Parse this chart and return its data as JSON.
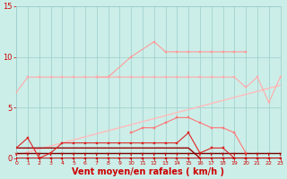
{
  "x": [
    0,
    1,
    2,
    3,
    4,
    5,
    6,
    7,
    8,
    9,
    10,
    11,
    12,
    13,
    14,
    15,
    16,
    17,
    18,
    19,
    20,
    21,
    22,
    23
  ],
  "series": [
    {
      "name": "rafales_top",
      "color": "#ff9999",
      "linewidth": 0.8,
      "marker": "s",
      "markersize": 2.0,
      "values": [
        null,
        null,
        null,
        null,
        null,
        null,
        null,
        8.0,
        8.0,
        null,
        10.0,
        null,
        11.5,
        10.5,
        10.5,
        10.5,
        10.5,
        10.5,
        10.5,
        10.5,
        10.5,
        null,
        null,
        null
      ]
    },
    {
      "name": "rafales_mid",
      "color": "#ffaaaa",
      "linewidth": 0.8,
      "marker": "s",
      "markersize": 2.0,
      "values": [
        6.5,
        8.0,
        8.0,
        8.0,
        8.0,
        8.0,
        8.0,
        8.0,
        8.0,
        8.0,
        8.0,
        8.0,
        8.0,
        8.0,
        8.0,
        8.0,
        8.0,
        8.0,
        8.0,
        8.0,
        7.0,
        8.0,
        5.5,
        8.0
      ]
    },
    {
      "name": "trend_upper",
      "color": "#ffbbbb",
      "linewidth": 1.0,
      "marker": null,
      "markersize": 0,
      "values": [
        0.3,
        0.6,
        0.9,
        1.2,
        1.5,
        1.8,
        2.1,
        2.4,
        2.7,
        3.0,
        3.3,
        3.6,
        3.9,
        4.2,
        4.5,
        4.8,
        5.1,
        5.4,
        5.7,
        6.0,
        6.3,
        6.6,
        6.9,
        7.2
      ]
    },
    {
      "name": "moyen_medium",
      "color": "#ff7777",
      "linewidth": 0.8,
      "marker": "s",
      "markersize": 2.0,
      "values": [
        null,
        null,
        null,
        null,
        null,
        null,
        null,
        null,
        null,
        null,
        2.5,
        3.0,
        3.0,
        3.5,
        4.0,
        4.0,
        3.5,
        3.0,
        3.0,
        2.5,
        0.5,
        null,
        null,
        null
      ]
    },
    {
      "name": "dark_markers",
      "color": "#dd2222",
      "linewidth": 0.8,
      "marker": "s",
      "markersize": 2.0,
      "values": [
        1.0,
        2.0,
        0.0,
        0.5,
        1.5,
        1.5,
        1.5,
        1.5,
        1.5,
        1.5,
        1.5,
        1.5,
        1.5,
        1.5,
        1.5,
        2.5,
        0.5,
        1.0,
        1.0,
        0.0,
        0.0,
        0.0,
        0.0,
        0.0
      ]
    },
    {
      "name": "flat_dark1",
      "color": "#990000",
      "linewidth": 1.0,
      "marker": null,
      "markersize": 0,
      "values": [
        1.0,
        1.0,
        1.0,
        1.0,
        1.0,
        1.0,
        1.0,
        1.0,
        1.0,
        1.0,
        1.0,
        1.0,
        1.0,
        1.0,
        1.0,
        1.0,
        0.0,
        0.0,
        0.0,
        0.0,
        0.0,
        0.0,
        0.0,
        0.0
      ]
    },
    {
      "name": "flat_dark2",
      "color": "#770000",
      "linewidth": 1.0,
      "marker": null,
      "markersize": 0,
      "values": [
        0.5,
        0.5,
        0.5,
        0.5,
        0.5,
        0.5,
        0.5,
        0.5,
        0.5,
        0.5,
        0.5,
        0.5,
        0.5,
        0.5,
        0.5,
        0.5,
        0.5,
        0.5,
        0.5,
        0.5,
        0.5,
        0.5,
        0.5,
        0.5
      ]
    },
    {
      "name": "zero_dots",
      "color": "#cc0000",
      "linewidth": 1.2,
      "marker": "s",
      "markersize": 2.0,
      "values": [
        0.0,
        0.0,
        0.0,
        0.0,
        0.0,
        0.0,
        0.0,
        0.0,
        0.0,
        0.0,
        0.0,
        0.0,
        0.0,
        0.0,
        0.0,
        0.0,
        0.0,
        0.0,
        0.0,
        0.0,
        0.0,
        0.0,
        0.0,
        0.0
      ]
    }
  ],
  "xlabel": "Vent moyen/en rafales ( km/h )",
  "yticks": [
    0,
    5,
    10,
    15
  ],
  "xlim": [
    0,
    23
  ],
  "ylim": [
    0,
    15
  ],
  "bg_color": "#cceee8",
  "grid_color": "#99cccc",
  "tick_color": "#cc0000",
  "xlabel_color": "#cc0000",
  "xlabel_fontsize": 7.0,
  "xlabel_fontweight": "bold",
  "ytick_fontsize": 6,
  "xtick_fontsize": 4.5
}
